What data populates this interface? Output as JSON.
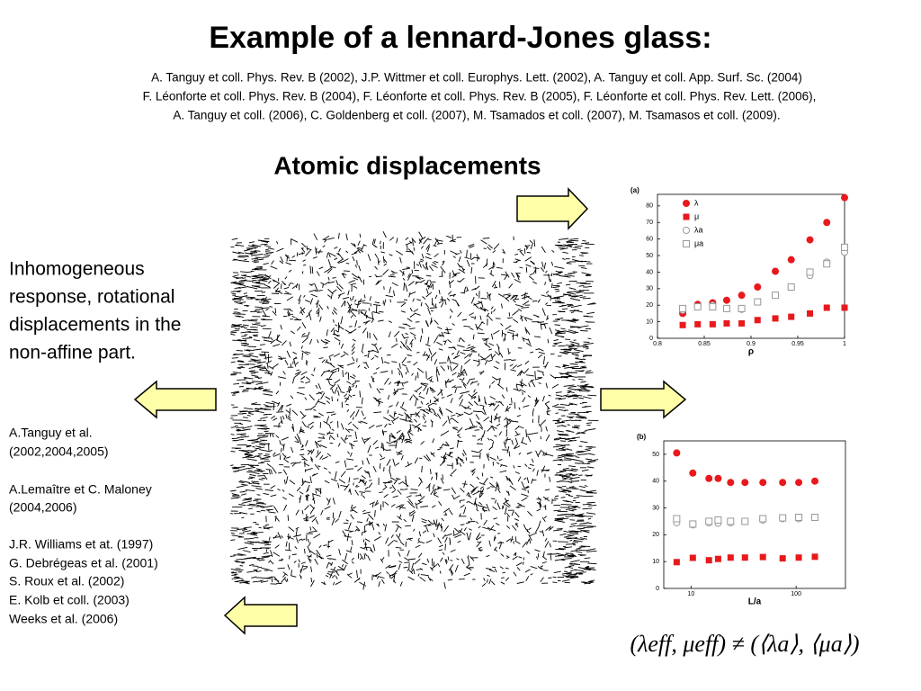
{
  "title": "Example of a lennard-Jones glass:",
  "references": [
    "A. Tanguy et coll. Phys. Rev. B (2002), J.P. Wittmer et coll. Europhys. Lett. (2002), A. Tanguy et coll. App. Surf. Sc. (2004)",
    "F. Léonforte et coll. Phys. Rev. B (2004), F. Léonforte et coll. Phys. Rev. B (2005), F. Léonforte et coll. Phys. Rev. Lett.  (2006),",
    "A. Tanguy et coll. (2006), C. Goldenberg et coll. (2007), M. Tsamados et coll. (2007), M. Tsamasos et coll. (2009)."
  ],
  "subtitle": "Atomic displacements",
  "description": [
    "Inhomogeneous",
    "response, rotational",
    "displacements in the",
    "non-affine part."
  ],
  "citations": [
    "A.Tanguy et al.",
    "(2002,2004,2005)",
    "A.Lemaître et C. Maloney",
    "(2004,2006)",
    "J.R. Williams et at. (1997)",
    "G. Debrégeas et al. (2001)",
    "S. Roux et al. (2002)",
    "E. Kolb et coll. (2003)",
    "Weeks et al. (2006)"
  ],
  "formula": "(λeff, μeff) ≠ (⟨λa⟩, ⟨μa⟩)",
  "chart_data": [
    {
      "type": "scatter",
      "panel_label": "(a)",
      "x_label": "ρ",
      "x": [
        0.827,
        0.843,
        0.859,
        0.874,
        0.89,
        0.907,
        0.926,
        0.943,
        0.963,
        0.981,
        1
      ],
      "xlim": [
        0.8,
        1
      ],
      "xticks": [
        0.8,
        0.85,
        0.9,
        0.95,
        1
      ],
      "ylim": [
        0,
        87
      ],
      "yticks": [
        0,
        10,
        20,
        30,
        40,
        50,
        60,
        70,
        80
      ],
      "legend": "top-left",
      "series": [
        {
          "name": "λ",
          "color": "#e8191c",
          "marker": "circle",
          "filled": true,
          "values": [
            15,
            20.5,
            21.5,
            23,
            26,
            31,
            40.5,
            47.5,
            59.5,
            70,
            85
          ]
        },
        {
          "name": "μ",
          "color": "#e8191c",
          "marker": "square",
          "filled": true,
          "values": [
            8,
            8.5,
            8.5,
            9,
            9,
            11,
            12,
            13,
            15,
            18.5,
            18.5
          ]
        },
        {
          "name": "λa",
          "color": "#999999",
          "marker": "circle",
          "filled": false,
          "values": [
            17,
            19,
            20,
            18,
            17.5,
            22,
            26,
            31,
            38,
            46,
            52
          ]
        },
        {
          "name": "μa",
          "color": "#999999",
          "marker": "square",
          "filled": false,
          "values": [
            18,
            19,
            19,
            18,
            18,
            22,
            26,
            31,
            40,
            45,
            55
          ]
        }
      ]
    },
    {
      "type": "scatter",
      "panel_label": "(b)",
      "x_label": "L/a",
      "log_x": true,
      "x": [
        7.3,
        10.4,
        14.8,
        18.1,
        23.8,
        32.6,
        48.3,
        74.5,
        106,
        151
      ],
      "xlim": [
        5.5,
        295
      ],
      "xticks": [
        10,
        100
      ],
      "ylim": [
        0,
        55
      ],
      "yticks": [
        0,
        10,
        20,
        30,
        40,
        50
      ],
      "series": [
        {
          "color": "#e8191c",
          "marker": "circle",
          "filled": true,
          "values": [
            50.5,
            43,
            41,
            41,
            39.5,
            39.5,
            39.5,
            39.5,
            39.5,
            40
          ]
        },
        {
          "color": "#e8191c",
          "marker": "square",
          "filled": true,
          "values": [
            9.8,
            11.4,
            10.5,
            11,
            11.5,
            11.5,
            11.7,
            11.2,
            11.5,
            11.8
          ]
        },
        {
          "color": "#999999",
          "marker": "circle",
          "filled": false,
          "values": [
            24.5,
            23.7,
            24.5,
            24.3,
            24.5,
            25,
            25.5,
            26,
            26,
            26.5
          ]
        },
        {
          "color": "#999999",
          "marker": "square",
          "filled": false,
          "values": [
            26,
            24,
            25,
            25.5,
            25,
            25,
            26,
            26.3,
            26.5,
            26.5
          ]
        }
      ]
    }
  ]
}
